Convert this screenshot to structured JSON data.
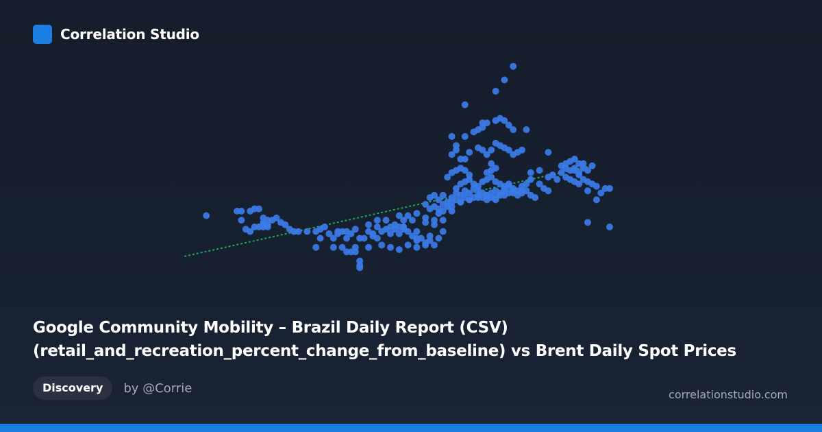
{
  "brand": {
    "name": "Correlation Studio",
    "logo": "square-logo-icon",
    "accent": "#1a7fe0"
  },
  "title": {
    "line1": "Google Community Mobility – Brazil Daily Report (CSV)",
    "line2": "(retail_and_recreation_percent_change_from_baseline) vs Brent Daily Spot Prices"
  },
  "badge": "Discovery",
  "author": "by @Corrie",
  "site": "correlationstudio.com",
  "chart_data": {
    "type": "scatter",
    "title": "",
    "xlabel": "",
    "ylabel": "",
    "axes_visible": false,
    "grid": false,
    "legend": "none",
    "xlim": [
      0,
      100
    ],
    "ylim": [
      0,
      100
    ],
    "point_color": "#3b7be8",
    "trendline": {
      "color": "#22a85a",
      "style": "dotted",
      "points": [
        [
          3,
          17
        ],
        [
          97,
          57.5
        ]
      ]
    },
    "points": [
      [
        8,
        35
      ],
      [
        15,
        37
      ],
      [
        16,
        37
      ],
      [
        16,
        33
      ],
      [
        18,
        37
      ],
      [
        17,
        29
      ],
      [
        19,
        38
      ],
      [
        20,
        38
      ],
      [
        21,
        32
      ],
      [
        21,
        34
      ],
      [
        22,
        31
      ],
      [
        22,
        30
      ],
      [
        23,
        33
      ],
      [
        22,
        33
      ],
      [
        24,
        34
      ],
      [
        19,
        30
      ],
      [
        20,
        30
      ],
      [
        21,
        30
      ],
      [
        26,
        31
      ],
      [
        25,
        32
      ],
      [
        18,
        28
      ],
      [
        21,
        31
      ],
      [
        27,
        29
      ],
      [
        28,
        28
      ],
      [
        29,
        28
      ],
      [
        31,
        28
      ],
      [
        33,
        28
      ],
      [
        35,
        30
      ],
      [
        34,
        29
      ],
      [
        36,
        27
      ],
      [
        37,
        25
      ],
      [
        38,
        27
      ],
      [
        38,
        28
      ],
      [
        39,
        28
      ],
      [
        40,
        28
      ],
      [
        41,
        27
      ],
      [
        42,
        29
      ],
      [
        40,
        25
      ],
      [
        43,
        25
      ],
      [
        44,
        25
      ],
      [
        46,
        26
      ],
      [
        47,
        25
      ],
      [
        48,
        28
      ],
      [
        45,
        28
      ],
      [
        46,
        27
      ],
      [
        49,
        29
      ],
      [
        50,
        30
      ],
      [
        51,
        31
      ],
      [
        52,
        30
      ],
      [
        53,
        30
      ],
      [
        54,
        28
      ],
      [
        55,
        26
      ],
      [
        56,
        25
      ],
      [
        57,
        25
      ],
      [
        58,
        23
      ],
      [
        59,
        26
      ],
      [
        52,
        27
      ],
      [
        53,
        29
      ],
      [
        50,
        27
      ],
      [
        47,
        30
      ],
      [
        45,
        31
      ],
      [
        47,
        33
      ],
      [
        49,
        33
      ],
      [
        52,
        35
      ],
      [
        53,
        33
      ],
      [
        54,
        35
      ],
      [
        55,
        33
      ],
      [
        56,
        36
      ],
      [
        58,
        34
      ],
      [
        60,
        33
      ],
      [
        61,
        36
      ],
      [
        58,
        32
      ],
      [
        53,
        30
      ],
      [
        51,
        29
      ],
      [
        34,
        25
      ],
      [
        33,
        21
      ],
      [
        37,
        21
      ],
      [
        39,
        21
      ],
      [
        42,
        21
      ],
      [
        45,
        21
      ],
      [
        48,
        22
      ],
      [
        50,
        21
      ],
      [
        52,
        20
      ],
      [
        54,
        22
      ],
      [
        56,
        24
      ],
      [
        56,
        21
      ],
      [
        58,
        22
      ],
      [
        59,
        24
      ],
      [
        60,
        22
      ],
      [
        61,
        25
      ],
      [
        56,
        28
      ],
      [
        60,
        31
      ],
      [
        62,
        33
      ],
      [
        64,
        37
      ],
      [
        62,
        28
      ],
      [
        40,
        19
      ],
      [
        41,
        19
      ],
      [
        42,
        19
      ],
      [
        43,
        15
      ],
      [
        43,
        13
      ],
      [
        43,
        12
      ],
      [
        58,
        40
      ],
      [
        59,
        43
      ],
      [
        60,
        44
      ],
      [
        61,
        42
      ],
      [
        62,
        44
      ],
      [
        63,
        41
      ],
      [
        64,
        43
      ],
      [
        65,
        45
      ],
      [
        66,
        44
      ],
      [
        67,
        46
      ],
      [
        68,
        45
      ],
      [
        69,
        47
      ],
      [
        70,
        46
      ],
      [
        71,
        45
      ],
      [
        72,
        44
      ],
      [
        73,
        43
      ],
      [
        74,
        42
      ],
      [
        75,
        45
      ],
      [
        76,
        46
      ],
      [
        77,
        48
      ],
      [
        78,
        47
      ],
      [
        79,
        46
      ],
      [
        80,
        48
      ],
      [
        81,
        49
      ],
      [
        62,
        40
      ],
      [
        64,
        39
      ],
      [
        66,
        41
      ],
      [
        68,
        42
      ],
      [
        70,
        43
      ],
      [
        72,
        42
      ],
      [
        74,
        43
      ],
      [
        76,
        44
      ],
      [
        78,
        45
      ],
      [
        80,
        46
      ],
      [
        59,
        38
      ],
      [
        60,
        39
      ],
      [
        61,
        38
      ],
      [
        62,
        37
      ],
      [
        63,
        39
      ],
      [
        64,
        41
      ],
      [
        65,
        42
      ],
      [
        66,
        41
      ],
      [
        67,
        43
      ],
      [
        68,
        42
      ],
      [
        69,
        43
      ],
      [
        70,
        44
      ],
      [
        71,
        43
      ],
      [
        72,
        44
      ],
      [
        73,
        45
      ],
      [
        74,
        46
      ],
      [
        75,
        44
      ],
      [
        76,
        47
      ],
      [
        77,
        45
      ],
      [
        78,
        46
      ],
      [
        79,
        44
      ],
      [
        80,
        45
      ],
      [
        81,
        46
      ],
      [
        82,
        44
      ],
      [
        83,
        43
      ],
      [
        65,
        47
      ],
      [
        66,
        49
      ],
      [
        67,
        50
      ],
      [
        68,
        51
      ],
      [
        69,
        49
      ],
      [
        70,
        48
      ],
      [
        71,
        50
      ],
      [
        72,
        51
      ],
      [
        73,
        52
      ],
      [
        74,
        50
      ],
      [
        63,
        52
      ],
      [
        64,
        54
      ],
      [
        65,
        55
      ],
      [
        66,
        56
      ],
      [
        67,
        55
      ],
      [
        68,
        53
      ],
      [
        72,
        54
      ],
      [
        73,
        58
      ],
      [
        73,
        55
      ],
      [
        74,
        56
      ],
      [
        76,
        48
      ],
      [
        75,
        49
      ],
      [
        77,
        49
      ],
      [
        64,
        62
      ],
      [
        65,
        64
      ],
      [
        66,
        60
      ],
      [
        68,
        63
      ],
      [
        70,
        65
      ],
      [
        71,
        64
      ],
      [
        72,
        62
      ],
      [
        73,
        64
      ],
      [
        74,
        67
      ],
      [
        75,
        66
      ],
      [
        76,
        65
      ],
      [
        77,
        64
      ],
      [
        78,
        62
      ],
      [
        79,
        63
      ],
      [
        80,
        64
      ],
      [
        82,
        51
      ],
      [
        82,
        54
      ],
      [
        84,
        49
      ],
      [
        85,
        47
      ],
      [
        86,
        46
      ],
      [
        84,
        55
      ],
      [
        86,
        52
      ],
      [
        87,
        53
      ],
      [
        88,
        51
      ],
      [
        89,
        54
      ],
      [
        90,
        52
      ],
      [
        91,
        51
      ],
      [
        92,
        50
      ],
      [
        93,
        49
      ],
      [
        94,
        51
      ],
      [
        95,
        50
      ],
      [
        93,
        53
      ],
      [
        92,
        55
      ],
      [
        90,
        56
      ],
      [
        91,
        55
      ],
      [
        92,
        56
      ],
      [
        93,
        54
      ],
      [
        94,
        56
      ],
      [
        95,
        55
      ],
      [
        96,
        57
      ],
      [
        94,
        58
      ],
      [
        89,
        57
      ],
      [
        90,
        58
      ],
      [
        91,
        59
      ],
      [
        92,
        60
      ],
      [
        93,
        58
      ],
      [
        95,
        46
      ],
      [
        96,
        49
      ],
      [
        97,
        48
      ],
      [
        97,
        42
      ],
      [
        98,
        45
      ],
      [
        99,
        47
      ],
      [
        100,
        47
      ],
      [
        67,
        70
      ],
      [
        69,
        72
      ],
      [
        70,
        73
      ],
      [
        71,
        74
      ],
      [
        72,
        76
      ],
      [
        74,
        77
      ],
      [
        75,
        78
      ],
      [
        76,
        77
      ],
      [
        77,
        75
      ],
      [
        78,
        73
      ],
      [
        81,
        73
      ],
      [
        86,
        63
      ],
      [
        95,
        32
      ],
      [
        100,
        30
      ],
      [
        67,
        84
      ],
      [
        71,
        76
      ],
      [
        74,
        90
      ],
      [
        76,
        95
      ],
      [
        78,
        101
      ],
      [
        64,
        70
      ],
      [
        65,
        66
      ],
      [
        67,
        60
      ]
    ]
  }
}
